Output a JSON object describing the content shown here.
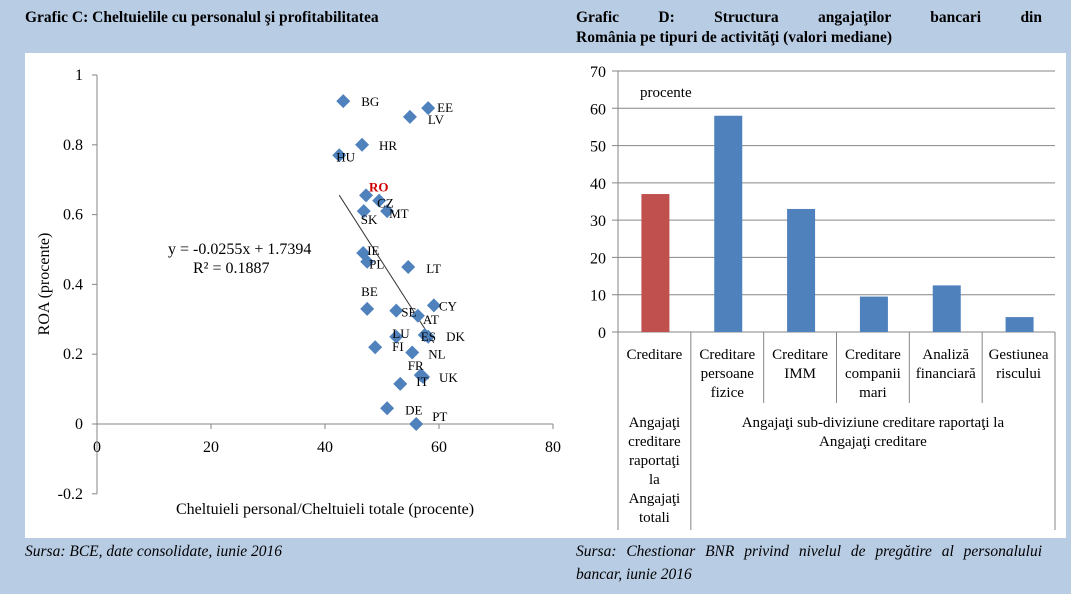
{
  "colors": {
    "background": "#b8cce4",
    "marker": "#4f81bd",
    "highlight_label": "#d00000",
    "bar_blue": "#4f81bd",
    "bar_red": "#c0504d",
    "axis": "#868686",
    "grid": "#868686"
  },
  "chart_data": [
    {
      "type": "scatter",
      "title": "Grafic C: Cheltuielile cu personalul şi profitabilitatea",
      "xlabel": "Cheltuieli personal/Cheltuieli totale (procente)",
      "ylabel": "ROA (procente)",
      "xlim": [
        0,
        80
      ],
      "ylim": [
        -0.2,
        1
      ],
      "xticks": [
        "0",
        "20",
        "40",
        "60",
        "80"
      ],
      "xtick_values": [
        0,
        20,
        40,
        60,
        80
      ],
      "yticks": [
        "1",
        "0.8",
        "0.6",
        "0.4",
        "0.2",
        "0",
        "-0.2"
      ],
      "ytick_values": [
        1,
        0.8,
        0.6,
        0.4,
        0.2,
        0,
        -0.2
      ],
      "grid": false,
      "points": [
        {
          "label": "BG",
          "x": 43.2,
          "y": 0.925
        },
        {
          "label": "EE",
          "x": 58.1,
          "y": 0.905
        },
        {
          "label": "LV",
          "x": 54.9,
          "y": 0.88
        },
        {
          "label": "HR",
          "x": 46.5,
          "y": 0.8
        },
        {
          "label": "HU",
          "x": 42.5,
          "y": 0.77
        },
        {
          "label": "RO",
          "x": 47.2,
          "y": 0.655,
          "highlight": true
        },
        {
          "label": "CZ",
          "x": 49.5,
          "y": 0.64
        },
        {
          "label": "SK",
          "x": 46.8,
          "y": 0.61
        },
        {
          "label": "MT",
          "x": 50.9,
          "y": 0.61
        },
        {
          "label": "IE",
          "x": 46.7,
          "y": 0.49
        },
        {
          "label": "PL",
          "x": 47.4,
          "y": 0.465
        },
        {
          "label": "LT",
          "x": 54.6,
          "y": 0.45
        },
        {
          "label": "BE",
          "x": 47.4,
          "y": 0.33
        },
        {
          "label": "SE",
          "x": 52.5,
          "y": 0.325
        },
        {
          "label": "CY",
          "x": 59.1,
          "y": 0.34
        },
        {
          "label": "AT",
          "x": 56.3,
          "y": 0.31
        },
        {
          "label": "LU",
          "x": 52.5,
          "y": 0.25
        },
        {
          "label": "ES",
          "x": 57.5,
          "y": 0.255
        },
        {
          "label": "DK",
          "x": 58.1,
          "y": 0.25
        },
        {
          "label": "FI",
          "x": 48.8,
          "y": 0.22
        },
        {
          "label": "NL",
          "x": 55.3,
          "y": 0.205
        },
        {
          "label": "FR",
          "x": 56.8,
          "y": 0.14
        },
        {
          "label": "UK",
          "x": 57.2,
          "y": 0.135
        },
        {
          "label": "IT",
          "x": 53.2,
          "y": 0.115
        },
        {
          "label": "DE",
          "x": 50.9,
          "y": 0.045
        },
        {
          "label": "PT",
          "x": 56.0,
          "y": 0.0
        }
      ],
      "trendline": {
        "slope": -0.0255,
        "intercept": 1.7394,
        "x_range": [
          42.5,
          59.1
        ],
        "equation": "y = -0.0255x + 1.7394",
        "r_squared": "R² = 0.1887"
      }
    },
    {
      "type": "bar",
      "title": "Grafic D: Structura angajaţilor bancari din România pe tipuri de activităţi (valori mediane)",
      "unit_label": "procente",
      "ylim": [
        0,
        70
      ],
      "yticks": [
        "0",
        "10",
        "20",
        "30",
        "40",
        "50",
        "60",
        "70"
      ],
      "ytick_values": [
        0,
        10,
        20,
        30,
        40,
        50,
        60,
        70
      ],
      "grid": true,
      "categories": [
        [
          "Creditare"
        ],
        [
          "Creditare",
          "persoane",
          "fizice"
        ],
        [
          "Creditare",
          "IMM"
        ],
        [
          "Creditare",
          "companii",
          "mari"
        ],
        [
          "Analiză",
          "financiară"
        ],
        [
          "Gestiunea",
          "riscului"
        ]
      ],
      "values": [
        37,
        58,
        33,
        9.5,
        12.5,
        4
      ],
      "bar_colors": [
        "#c0504d",
        "#4f81bd",
        "#4f81bd",
        "#4f81bd",
        "#4f81bd",
        "#4f81bd"
      ],
      "groups": [
        {
          "label": [
            "Angajaţi",
            "creditare",
            "raportaţi",
            "la",
            "Angajaţi",
            "totali"
          ],
          "span": [
            0,
            0
          ]
        },
        {
          "label": [
            "Angajaţi sub-diviziune creditare raportaţi la",
            "Angajaţi creditare"
          ],
          "span": [
            1,
            5
          ]
        }
      ]
    }
  ],
  "sources": {
    "left": "Sursa: BCE, date consolidate, iunie 2016",
    "right": "Sursa: Chestionar BNR privind nivelul de pregătire al personalului bancar, iunie 2016"
  },
  "titles": {
    "left": "Grafic C: Cheltuielile cu personalul şi profitabilitatea",
    "right_line1": "Grafic D: Structura angajaţilor bancari din",
    "right_line2": "România pe tipuri de activităţi (valori mediane)"
  }
}
